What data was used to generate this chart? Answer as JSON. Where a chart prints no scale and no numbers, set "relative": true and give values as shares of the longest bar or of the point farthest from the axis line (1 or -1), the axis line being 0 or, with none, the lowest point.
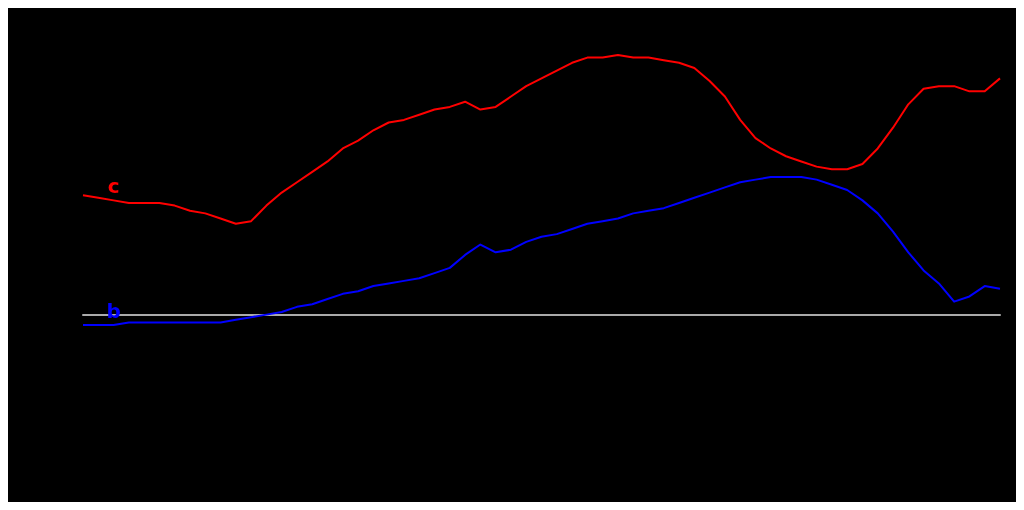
{
  "chart_data": {
    "type": "line",
    "relative": true,
    "categories": [
      null,
      null,
      null,
      null,
      null,
      null,
      null,
      null,
      null,
      null,
      null,
      null,
      null,
      null,
      null,
      null,
      null,
      null,
      null,
      null,
      null,
      null,
      null,
      null,
      null,
      null,
      null,
      null,
      null,
      null,
      null,
      null,
      null,
      null,
      null,
      null,
      null,
      null,
      null,
      null,
      null,
      null,
      null,
      null,
      null,
      null,
      null,
      null,
      null,
      null,
      null,
      null,
      null,
      null,
      null,
      null,
      null,
      null,
      null,
      null,
      null
    ],
    "series": [
      {
        "name": "c",
        "color": "#ff0000",
        "values": [
          0.46,
          0.45,
          0.44,
          0.43,
          0.43,
          0.43,
          0.42,
          0.4,
          0.39,
          0.37,
          0.35,
          0.36,
          0.42,
          0.47,
          0.51,
          0.55,
          0.59,
          0.64,
          0.67,
          0.71,
          0.74,
          0.75,
          0.77,
          0.79,
          0.8,
          0.82,
          0.79,
          0.8,
          0.84,
          0.88,
          0.91,
          0.94,
          0.97,
          0.99,
          0.99,
          1.0,
          0.99,
          0.99,
          0.98,
          0.97,
          0.95,
          0.9,
          0.84,
          0.75,
          0.68,
          0.64,
          0.61,
          0.59,
          0.57,
          0.56,
          0.56,
          0.58,
          0.64,
          0.72,
          0.81,
          0.87,
          0.88,
          0.88,
          0.86,
          0.86,
          0.91
        ]
      },
      {
        "name": "b",
        "color": "#0000ff",
        "values": [
          -0.04,
          -0.04,
          -0.04,
          -0.03,
          -0.03,
          -0.03,
          -0.03,
          -0.03,
          -0.03,
          -0.03,
          -0.02,
          -0.01,
          0,
          0.01,
          0.03,
          0.04,
          0.06,
          0.08,
          0.09,
          0.11,
          0.12,
          0.13,
          0.14,
          0.16,
          0.18,
          0.23,
          0.27,
          0.24,
          0.25,
          0.28,
          0.3,
          0.31,
          0.33,
          0.35,
          0.36,
          0.37,
          0.39,
          0.4,
          0.41,
          0.43,
          0.45,
          0.47,
          0.49,
          0.51,
          0.52,
          0.53,
          0.53,
          0.53,
          0.52,
          0.5,
          0.48,
          0.44,
          0.39,
          0.32,
          0.24,
          0.17,
          0.12,
          0.05,
          0.07,
          0.11,
          0.1
        ]
      }
    ]
  }
}
